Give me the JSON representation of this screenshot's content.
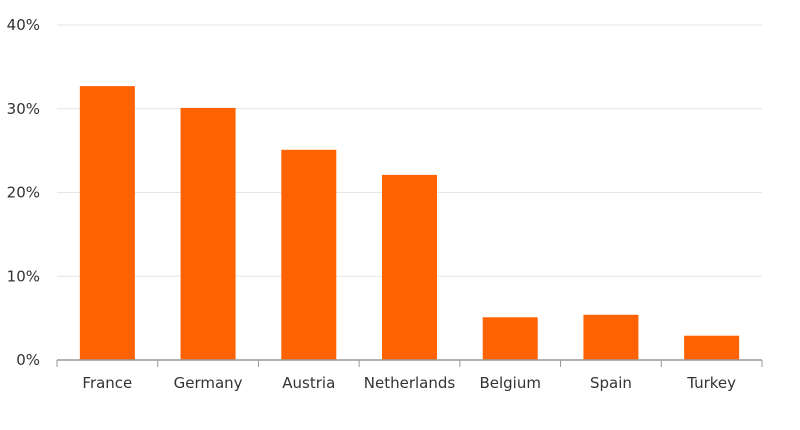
{
  "chart_data": {
    "type": "bar",
    "title": "",
    "xlabel": "",
    "ylabel": "",
    "categories": [
      "France",
      "Germany",
      "Austria",
      "Netherlands",
      "Belgium",
      "Spain",
      "Turkey"
    ],
    "values": [
      32.7,
      30.1,
      25.1,
      22.1,
      5.1,
      5.4,
      2.9
    ],
    "ylim": [
      0,
      40
    ],
    "yticks": [
      0,
      10,
      20,
      30,
      40
    ],
    "ytick_labels": [
      "0%",
      "10%",
      "20%",
      "30%",
      "40%"
    ],
    "grid": true,
    "bar_color": "#ff6200",
    "grid_color": "#e6e6e6",
    "axis_color": "#999999"
  }
}
